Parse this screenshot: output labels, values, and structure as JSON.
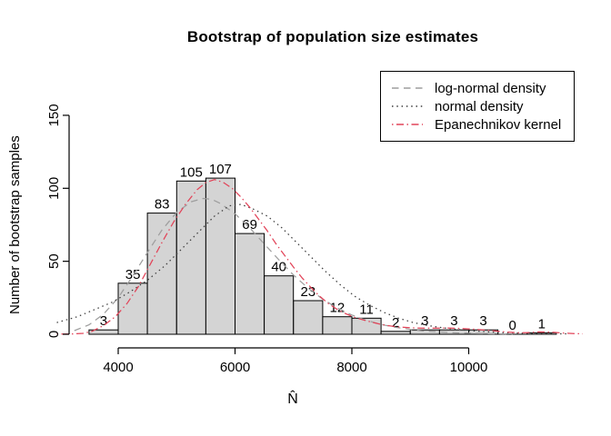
{
  "chart_data": {
    "type": "bar",
    "subtype": "histogram-with-density-curves",
    "title": "Bootstrap of population size estimates",
    "xlabel": "N̂",
    "ylabel": "Number of bootstrap samples",
    "x_ticks": [
      4000,
      6000,
      8000,
      10000
    ],
    "y_ticks": [
      0,
      50,
      100,
      150
    ],
    "xlim": [
      3200,
      12100
    ],
    "ylim": [
      0,
      150
    ],
    "bin_start": 3500,
    "bin_width": 500,
    "counts": [
      3,
      35,
      83,
      105,
      107,
      69,
      40,
      23,
      12,
      11,
      2,
      3,
      3,
      3,
      0,
      1
    ],
    "bar_fill": "#d4d4d4",
    "bar_border": "#000000",
    "axis_color": "#000000",
    "curves": [
      {
        "name": "log-normal density",
        "style": "dashed",
        "color": "#9e9e9e",
        "points": [
          [
            3250,
            2.5
          ],
          [
            3500,
            6.5
          ],
          [
            3750,
            13.8
          ],
          [
            4000,
            25
          ],
          [
            4250,
            40
          ],
          [
            4500,
            56
          ],
          [
            4750,
            71.5
          ],
          [
            5000,
            83.5
          ],
          [
            5250,
            90.8
          ],
          [
            5450,
            93
          ],
          [
            5600,
            92.5
          ],
          [
            5750,
            89.6
          ],
          [
            6000,
            82.5
          ],
          [
            6250,
            72.9
          ],
          [
            6500,
            61.9
          ],
          [
            6750,
            51
          ],
          [
            7000,
            40.6
          ],
          [
            7250,
            31.6
          ],
          [
            7500,
            24.1
          ],
          [
            7750,
            18.1
          ],
          [
            8000,
            13.2
          ],
          [
            8250,
            9.5
          ],
          [
            8500,
            6.7
          ],
          [
            8750,
            4.7
          ],
          [
            9000,
            3.3
          ],
          [
            9250,
            2.2
          ],
          [
            9500,
            1.6
          ],
          [
            9750,
            1.0
          ],
          [
            10000,
            0.7
          ],
          [
            10250,
            0.45
          ],
          [
            10500,
            0.3
          ],
          [
            10750,
            0.2
          ]
        ]
      },
      {
        "name": "normal density",
        "style": "dotted",
        "color": "#3d3d3d",
        "points": [
          [
            2950,
            8
          ],
          [
            3300,
            12
          ],
          [
            3600,
            17
          ],
          [
            3900,
            22
          ],
          [
            4200,
            29
          ],
          [
            4500,
            37
          ],
          [
            4800,
            47
          ],
          [
            5100,
            59
          ],
          [
            5400,
            71
          ],
          [
            5650,
            81
          ],
          [
            5900,
            88
          ],
          [
            6100,
            89
          ],
          [
            6300,
            86
          ],
          [
            6550,
            81
          ],
          [
            6800,
            73
          ],
          [
            7050,
            63
          ],
          [
            7300,
            53
          ],
          [
            7550,
            43
          ],
          [
            7800,
            34
          ],
          [
            8050,
            26
          ],
          [
            8300,
            20
          ],
          [
            8550,
            15
          ],
          [
            8800,
            11
          ],
          [
            9050,
            8
          ],
          [
            9300,
            6
          ],
          [
            9550,
            4.5
          ],
          [
            9800,
            3.3
          ],
          [
            10050,
            2.4
          ],
          [
            10300,
            1.7
          ],
          [
            10550,
            1.2
          ],
          [
            10800,
            0.9
          ],
          [
            11100,
            0.6
          ],
          [
            11400,
            0.4
          ],
          [
            11700,
            0.3
          ]
        ]
      },
      {
        "name": "Epanechnikov kernel",
        "style": "dashdot",
        "color": "#e24358",
        "points": [
          [
            2950,
            0.2
          ],
          [
            3200,
            0.2
          ],
          [
            3400,
            0.6
          ],
          [
            3550,
            2
          ],
          [
            3750,
            6
          ],
          [
            3950,
            12
          ],
          [
            4150,
            21
          ],
          [
            4350,
            33
          ],
          [
            4550,
            48
          ],
          [
            4750,
            63
          ],
          [
            4950,
            77
          ],
          [
            5150,
            89
          ],
          [
            5350,
            99
          ],
          [
            5500,
            104
          ],
          [
            5650,
            106
          ],
          [
            5800,
            104
          ],
          [
            5950,
            100
          ],
          [
            6100,
            94
          ],
          [
            6250,
            87
          ],
          [
            6400,
            79
          ],
          [
            6550,
            71
          ],
          [
            6700,
            62
          ],
          [
            6850,
            54
          ],
          [
            7000,
            46
          ],
          [
            7150,
            38.5
          ],
          [
            7300,
            32
          ],
          [
            7450,
            26
          ],
          [
            7600,
            21
          ],
          [
            7750,
            17
          ],
          [
            7900,
            14
          ],
          [
            8050,
            11.5
          ],
          [
            8200,
            9.8
          ],
          [
            8350,
            8.2
          ],
          [
            8500,
            6.8
          ],
          [
            8650,
            5.7
          ],
          [
            8800,
            5
          ],
          [
            9000,
            4.5
          ],
          [
            9200,
            4.2
          ],
          [
            9400,
            4.2
          ],
          [
            9600,
            4.3
          ],
          [
            9800,
            4.1
          ],
          [
            10000,
            3.7
          ],
          [
            10200,
            3.1
          ],
          [
            10400,
            2.5
          ],
          [
            10600,
            1.7
          ],
          [
            10800,
            1.1
          ],
          [
            11000,
            1.1
          ],
          [
            11200,
            1.6
          ],
          [
            11400,
            1.5
          ],
          [
            11600,
            0.9
          ],
          [
            11800,
            0.5
          ],
          [
            11950,
            0.3
          ]
        ]
      }
    ],
    "legend_position": "top-right",
    "grid": false
  }
}
